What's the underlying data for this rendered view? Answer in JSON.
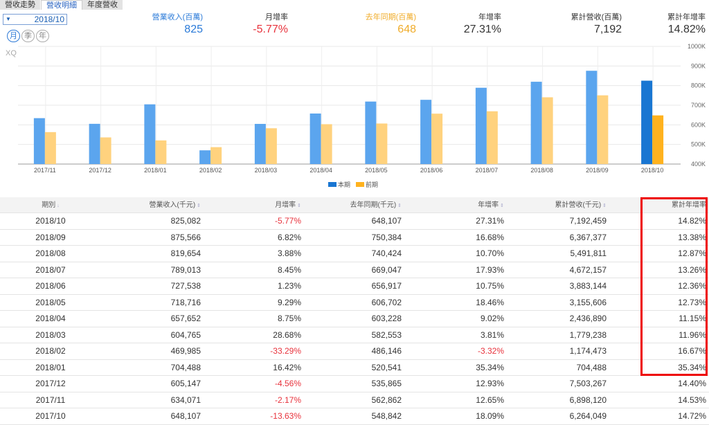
{
  "tabs": [
    "營收走勢",
    "營收明細",
    "年度營收"
  ],
  "period_select": {
    "value": "2018/10"
  },
  "period_pills": [
    "月",
    "季",
    "年"
  ],
  "summary": [
    {
      "label": "營業收入(百萬)",
      "value": "825",
      "color": "#2a7ad8"
    },
    {
      "label": "月增率",
      "value": "-5.77%",
      "color": "#e8313b"
    },
    {
      "label": "去年同期(百萬)",
      "value": "648",
      "color": "#f0ac2a"
    },
    {
      "label": "年增率",
      "value": "27.31%",
      "color": "#333333"
    },
    {
      "label": "累計營收(百萬)",
      "value": "7,192",
      "color": "#333333"
    },
    {
      "label": "累計年增率",
      "value": "14.82%",
      "color": "#333333"
    }
  ],
  "chart_data": {
    "type": "bar",
    "watermark": "XQ",
    "categories": [
      "2017/11",
      "2017/12",
      "2018/01",
      "2018/02",
      "2018/03",
      "2018/04",
      "2018/05",
      "2018/06",
      "2018/07",
      "2018/08",
      "2018/09",
      "2018/10"
    ],
    "series": [
      {
        "name": "本期",
        "values": [
          634071,
          605147,
          704488,
          469985,
          604765,
          657652,
          718716,
          727538,
          789013,
          819654,
          875566,
          825082
        ]
      },
      {
        "name": "前期",
        "values": [
          562862,
          535865,
          520541,
          486146,
          582553,
          603228,
          606702,
          656917,
          669047,
          740424,
          750384,
          648107
        ]
      }
    ],
    "ylim": [
      400000,
      1000000
    ],
    "yticks": [
      "400K",
      "500K",
      "600K",
      "700K",
      "800K",
      "900K",
      "1000K"
    ],
    "colors": {
      "current": "#5ba5ee",
      "current_latest": "#1976d2",
      "previous": "#ffd27e",
      "previous_latest": "#ffb21e"
    }
  },
  "table": {
    "headers": [
      "期別",
      "營業收入(千元)",
      "月增率",
      "去年同期(千元)",
      "年增率",
      "累計營收(千元)",
      "累計年增率"
    ],
    "sort_icons": [
      "↓",
      "⇕",
      "⇕",
      "⇕",
      "⇕",
      "⇕",
      ""
    ],
    "rows": [
      [
        "2018/10",
        "825,082",
        "-5.77%",
        "648,107",
        "27.31%",
        "7,192,459",
        "14.82%"
      ],
      [
        "2018/09",
        "875,566",
        "6.82%",
        "750,384",
        "16.68%",
        "6,367,377",
        "13.38%"
      ],
      [
        "2018/08",
        "819,654",
        "3.88%",
        "740,424",
        "10.70%",
        "5,491,811",
        "12.87%"
      ],
      [
        "2018/07",
        "789,013",
        "8.45%",
        "669,047",
        "17.93%",
        "4,672,157",
        "13.26%"
      ],
      [
        "2018/06",
        "727,538",
        "1.23%",
        "656,917",
        "10.75%",
        "3,883,144",
        "12.36%"
      ],
      [
        "2018/05",
        "718,716",
        "9.29%",
        "606,702",
        "18.46%",
        "3,155,606",
        "12.73%"
      ],
      [
        "2018/04",
        "657,652",
        "8.75%",
        "603,228",
        "9.02%",
        "2,436,890",
        "11.15%"
      ],
      [
        "2018/03",
        "604,765",
        "28.68%",
        "582,553",
        "3.81%",
        "1,779,238",
        "11.96%"
      ],
      [
        "2018/02",
        "469,985",
        "-33.29%",
        "486,146",
        "-3.32%",
        "1,174,473",
        "16.67%"
      ],
      [
        "2018/01",
        "704,488",
        "16.42%",
        "520,541",
        "35.34%",
        "704,488",
        "35.34%"
      ],
      [
        "2017/12",
        "605,147",
        "-4.56%",
        "535,865",
        "12.93%",
        "7,503,267",
        "14.40%"
      ],
      [
        "2017/11",
        "634,071",
        "-2.17%",
        "562,862",
        "12.65%",
        "6,898,120",
        "14.53%"
      ],
      [
        "2017/10",
        "648,107",
        "-13.63%",
        "548,842",
        "18.09%",
        "6,264,049",
        "14.72%"
      ]
    ]
  }
}
